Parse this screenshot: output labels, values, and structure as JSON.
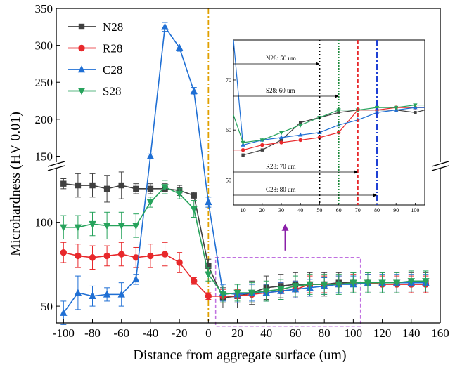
{
  "chart_data": {
    "type": "line",
    "title": "",
    "xlabel": "Distance from aggregate surface (um)",
    "ylabel": "Microhardness (HV 0.01)",
    "xlim": [
      -105,
      160
    ],
    "x_ticks": [
      -100,
      -80,
      -60,
      -40,
      -20,
      0,
      20,
      40,
      60,
      80,
      100,
      120,
      140,
      160
    ],
    "y_axis_break": true,
    "y_lower_range": [
      40,
      135
    ],
    "y_upper_range": [
      140,
      350
    ],
    "y_ticks_lower": [
      50,
      100
    ],
    "y_ticks_upper": [
      150,
      200,
      250,
      300,
      350
    ],
    "legend_position": "top-left",
    "x": [
      -100,
      -90,
      -80,
      -70,
      -60,
      -50,
      -40,
      -30,
      -20,
      -10,
      0,
      10,
      20,
      30,
      40,
      50,
      60,
      70,
      80,
      90,
      100,
      110,
      120,
      130,
      140,
      150
    ],
    "series": [
      {
        "name": "N28",
        "color": "#404040",
        "marker": "square",
        "values": [
          123,
          122,
          122,
          120,
          122,
          120,
          120,
          120,
          119,
          116,
          74,
          55,
          56,
          58,
          61,
          62,
          63,
          63,
          63,
          64,
          64,
          64,
          64,
          64,
          64,
          64
        ],
        "errors": [
          3,
          7,
          7,
          8,
          8,
          3,
          3,
          3,
          3,
          2,
          4,
          6,
          7,
          7,
          7,
          7,
          7,
          7,
          7,
          6,
          6,
          6,
          6,
          6,
          6,
          6
        ]
      },
      {
        "name": "R28",
        "color": "#e8282b",
        "marker": "circle",
        "values": [
          82,
          80,
          79,
          80,
          81,
          79,
          80,
          81,
          76,
          65,
          56,
          56,
          56,
          57,
          58,
          59,
          60,
          63,
          63,
          63,
          64,
          64,
          63,
          63,
          63,
          63
        ],
        "errors": [
          6,
          7,
          7,
          6,
          7,
          6,
          7,
          7,
          6,
          2,
          2,
          4,
          4,
          5,
          5,
          5,
          5,
          5,
          5,
          5,
          5,
          5,
          5,
          5,
          5,
          5
        ]
      },
      {
        "name": "C28",
        "color": "#1f6fd4",
        "marker": "triangle-up",
        "values": [
          46,
          58,
          56,
          57,
          57,
          66,
          150,
          325,
          297,
          238,
          112,
          58,
          57,
          58,
          58,
          59,
          60,
          61,
          62,
          63,
          63,
          64,
          64,
          64,
          64,
          64
        ],
        "errors": [
          7,
          10,
          6,
          4,
          7,
          3,
          3,
          6,
          5,
          5,
          3,
          5,
          5,
          5,
          5,
          5,
          5,
          5,
          5,
          5,
          5,
          5,
          5,
          5,
          5,
          5
        ]
      },
      {
        "name": "S28",
        "color": "#27a35c",
        "marker": "triangle-down",
        "values": [
          97,
          97,
          99,
          98,
          98,
          98,
          112,
          121,
          117,
          108,
          69,
          57,
          58,
          58,
          59,
          60,
          62,
          63,
          63,
          63,
          64,
          64,
          64,
          64,
          65,
          65
        ],
        "errors": [
          7,
          7,
          7,
          8,
          8,
          7,
          3,
          4,
          3,
          5,
          4,
          5,
          5,
          6,
          6,
          6,
          6,
          6,
          6,
          6,
          6,
          6,
          6,
          6,
          6,
          6
        ]
      }
    ],
    "vertical_reference_line": {
      "x": 0,
      "color": "#e0a000",
      "style": "dash-dot"
    },
    "annotation_box": {
      "x_range": [
        5,
        105
      ],
      "y_range": [
        38,
        79
      ],
      "color": "#c070e0",
      "style": "dashed",
      "arrow_color": "#8a1fa8"
    },
    "inset": {
      "xlim": [
        5,
        105
      ],
      "ylim": [
        45,
        78
      ],
      "x_ticks": [
        10,
        20,
        30,
        40,
        50,
        60,
        70,
        80,
        90,
        100
      ],
      "y_ticks": [
        50,
        60,
        70
      ],
      "series": [
        {
          "name": "N28",
          "color": "#404040",
          "x": [
            10,
            20,
            30,
            40,
            50,
            60,
            70,
            80,
            90,
            100,
            105
          ],
          "values": [
            55,
            56,
            58,
            61.5,
            62.5,
            63.5,
            64,
            64,
            64,
            63.5,
            64
          ]
        },
        {
          "name": "R28",
          "color": "#e8282b",
          "x": [
            5,
            10,
            20,
            30,
            40,
            50,
            60,
            70,
            80,
            90,
            100,
            105
          ],
          "values": [
            56,
            56,
            57,
            57.5,
            58,
            58.5,
            59.5,
            64,
            64,
            64.5,
            64.5,
            64.5
          ]
        },
        {
          "name": "C28",
          "color": "#1f6fd4",
          "x": [
            5,
            10,
            20,
            30,
            40,
            50,
            60,
            70,
            80,
            90,
            100,
            105
          ],
          "values": [
            78,
            57,
            58,
            58.5,
            59,
            59.5,
            61,
            62,
            63.5,
            64,
            64.5,
            64.5
          ]
        },
        {
          "name": "S28",
          "color": "#27a35c",
          "x": [
            5,
            10,
            20,
            30,
            40,
            50,
            60,
            70,
            80,
            90,
            100,
            105
          ],
          "values": [
            63,
            57.5,
            58,
            59.5,
            61,
            62.5,
            64,
            64,
            64.5,
            64.5,
            65,
            65
          ]
        }
      ],
      "markers": [
        {
          "label": "N28: 50 um",
          "x": 50,
          "color": "#000000"
        },
        {
          "label": "S28: 60 um",
          "x": 60,
          "color": "#1e8a3c"
        },
        {
          "label": "R28: 70 um",
          "x": 70,
          "color": "#e8282b"
        },
        {
          "label": "C28: 80 um",
          "x": 80,
          "color": "#1f40d4"
        }
      ]
    }
  }
}
